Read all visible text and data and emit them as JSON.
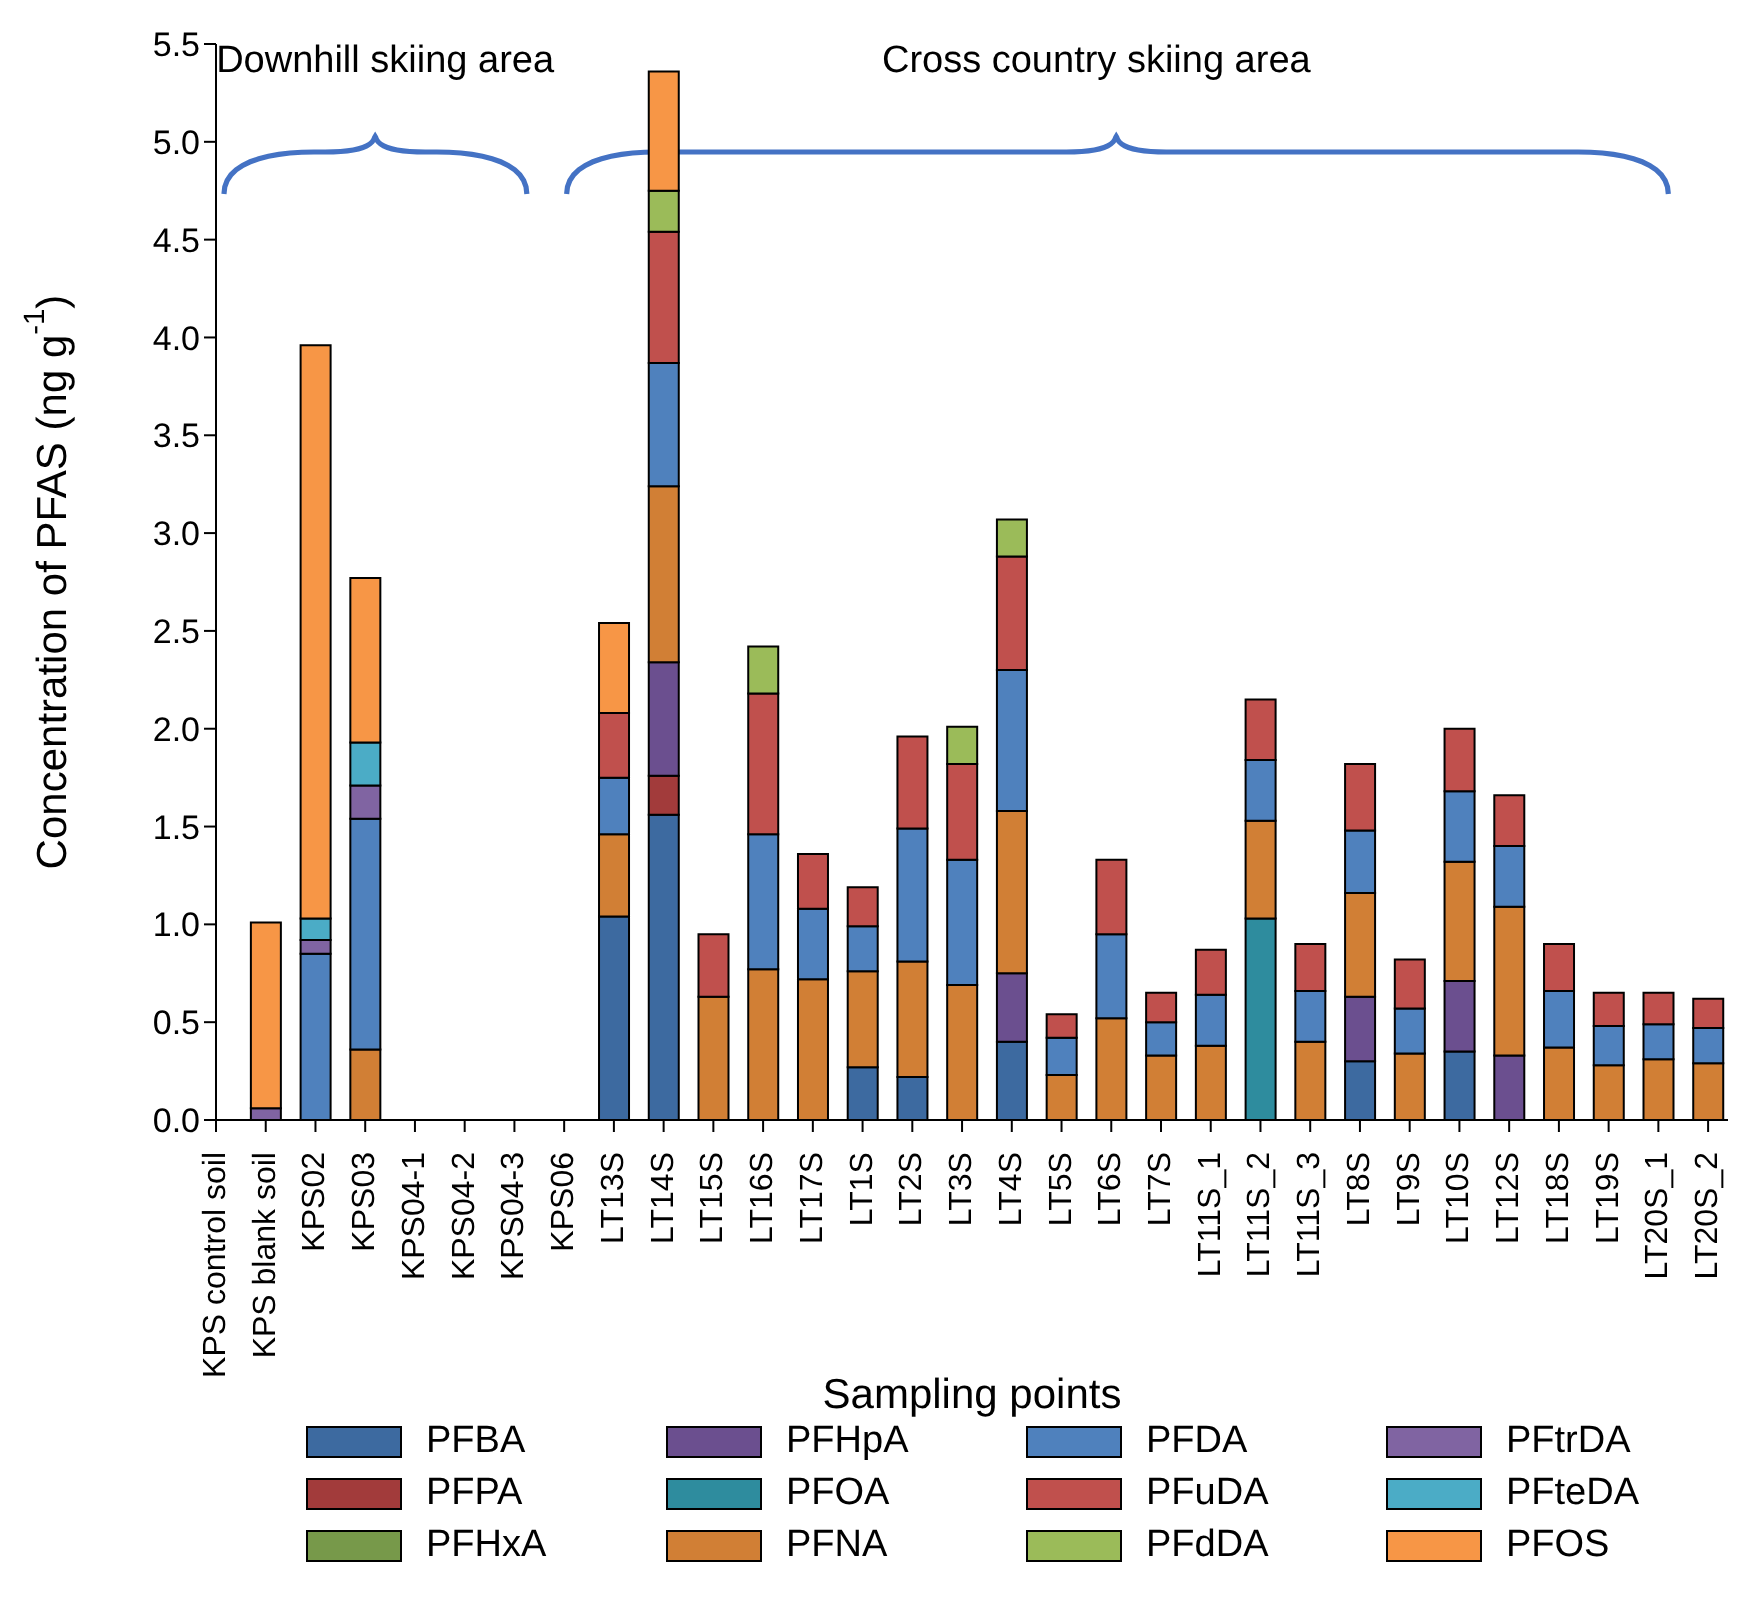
{
  "chart_data": {
    "type": "bar",
    "stacked": true,
    "xlabel": "Sampling points",
    "ylabel": "Concentration of PFAS (ng g$^{-1}$)",
    "annotations": [
      "Downhill skiing area",
      "Cross country skiing area"
    ],
    "categories": [
      "KPS control soil",
      "KPS blank soil",
      "KPS02",
      "KPS03",
      "KPS04-1",
      "KPS04-2",
      "KPS04-3",
      "KPS06",
      "LT13S",
      "LT14S",
      "LT15S",
      "LT16S",
      "LT17S",
      "LT1S",
      "LT2S",
      "LT3S",
      "LT4S",
      "LT5S",
      "LT6S",
      "LT7S",
      "LT11S_1",
      "LT11S_2",
      "LT11S_3",
      "LT8S",
      "LT9S",
      "LT10S",
      "LT12S",
      "LT18S",
      "LT19S",
      "LT20S_1",
      "LT20S_2"
    ],
    "ylim": [
      0,
      5.5
    ],
    "yticks": [
      {
        "value": 0,
        "label": "0.0"
      },
      {
        "value": 0.5,
        "label": "0.5"
      },
      {
        "value": 1,
        "label": "1.0"
      },
      {
        "value": 1.5,
        "label": "1.5"
      },
      {
        "value": 2,
        "label": "2.0"
      },
      {
        "value": 2.5,
        "label": "2.5"
      },
      {
        "value": 3,
        "label": "3.0"
      },
      {
        "value": 3.5,
        "label": "3.5"
      },
      {
        "value": 4,
        "label": "4.0"
      },
      {
        "value": 4.5,
        "label": "4.5"
      },
      {
        "value": 5,
        "label": "5.0"
      },
      {
        "value": 5.5,
        "label": "5.5"
      }
    ],
    "grid": false,
    "legend": "bottom",
    "series": [
      {
        "name": "PFBA",
        "color": "#3d6aa0",
        "values": [
          null,
          null,
          null,
          null,
          null,
          null,
          null,
          null,
          1.04,
          1.56,
          null,
          null,
          null,
          0.27,
          0.22,
          null,
          0.4,
          null,
          null,
          null,
          null,
          null,
          null,
          0.3,
          null,
          0.35,
          null,
          null,
          null,
          null,
          null
        ]
      },
      {
        "name": "PFPA",
        "color": "#a23b3b",
        "values": [
          null,
          null,
          null,
          null,
          null,
          null,
          null,
          null,
          null,
          0.2,
          null,
          null,
          null,
          null,
          null,
          null,
          null,
          null,
          null,
          null,
          null,
          null,
          null,
          null,
          null,
          null,
          null,
          null,
          null,
          null,
          null
        ]
      },
      {
        "name": "PFHxA",
        "color": "#77994a",
        "values": [
          null,
          null,
          null,
          null,
          null,
          null,
          null,
          null,
          null,
          null,
          null,
          null,
          null,
          null,
          null,
          null,
          null,
          null,
          null,
          null,
          null,
          null,
          null,
          null,
          null,
          null,
          null,
          null,
          null,
          null,
          null
        ]
      },
      {
        "name": "PFHpA",
        "color": "#6b4f8f",
        "values": [
          null,
          null,
          null,
          null,
          null,
          null,
          null,
          null,
          null,
          0.58,
          null,
          null,
          null,
          null,
          null,
          null,
          0.35,
          null,
          null,
          null,
          null,
          null,
          null,
          0.33,
          null,
          0.36,
          0.33,
          null,
          null,
          null,
          null
        ]
      },
      {
        "name": "PFOA",
        "color": "#2e8c9e",
        "values": [
          null,
          null,
          null,
          null,
          null,
          null,
          null,
          null,
          null,
          null,
          null,
          null,
          null,
          null,
          null,
          null,
          null,
          null,
          null,
          null,
          null,
          1.03,
          null,
          null,
          null,
          null,
          null,
          null,
          null,
          null,
          null
        ]
      },
      {
        "name": "PFNA",
        "color": "#d17f35",
        "values": [
          null,
          null,
          null,
          0.36,
          null,
          null,
          null,
          null,
          0.42,
          0.9,
          0.63,
          0.77,
          0.72,
          0.49,
          0.59,
          0.69,
          0.83,
          0.23,
          0.52,
          0.33,
          0.38,
          0.5,
          0.4,
          0.53,
          0.34,
          0.61,
          0.76,
          0.37,
          0.28,
          0.31,
          0.29
        ]
      },
      {
        "name": "PFDA",
        "color": "#4f81bd",
        "values": [
          null,
          null,
          0.85,
          1.18,
          null,
          null,
          null,
          null,
          0.29,
          0.63,
          null,
          0.69,
          0.36,
          0.23,
          0.68,
          0.64,
          0.72,
          0.19,
          0.43,
          0.17,
          0.26,
          0.31,
          0.26,
          0.32,
          0.23,
          0.36,
          0.31,
          0.29,
          0.2,
          0.18,
          0.18
        ]
      },
      {
        "name": "PFuDA",
        "color": "#c0504d",
        "values": [
          null,
          null,
          null,
          null,
          null,
          null,
          null,
          null,
          0.33,
          0.67,
          0.32,
          0.72,
          0.28,
          0.2,
          0.47,
          0.49,
          0.58,
          0.12,
          0.38,
          0.15,
          0.23,
          0.31,
          0.24,
          0.34,
          0.25,
          0.32,
          0.26,
          0.24,
          0.17,
          0.16,
          0.15
        ]
      },
      {
        "name": "PFdDA",
        "color": "#9bbb59",
        "values": [
          null,
          null,
          null,
          null,
          null,
          null,
          null,
          null,
          null,
          0.21,
          null,
          0.24,
          null,
          null,
          null,
          0.19,
          0.19,
          null,
          null,
          null,
          null,
          null,
          null,
          null,
          null,
          null,
          null,
          null,
          null,
          null,
          null
        ]
      },
      {
        "name": "PFtrDA",
        "color": "#8064a2",
        "values": [
          null,
          0.06,
          0.07,
          0.17,
          null,
          null,
          null,
          null,
          null,
          null,
          null,
          null,
          null,
          null,
          null,
          null,
          null,
          null,
          null,
          null,
          null,
          null,
          null,
          null,
          null,
          null,
          null,
          null,
          null,
          null,
          null
        ]
      },
      {
        "name": "PFteDA",
        "color": "#4bacc6",
        "values": [
          null,
          null,
          0.11,
          0.22,
          null,
          null,
          null,
          null,
          null,
          null,
          null,
          null,
          null,
          null,
          null,
          null,
          null,
          null,
          null,
          null,
          null,
          null,
          null,
          null,
          null,
          null,
          null,
          null,
          null,
          null,
          null
        ]
      },
      {
        "name": "PFOS",
        "color": "#f79646",
        "values": [
          null,
          0.95,
          2.93,
          0.84,
          null,
          null,
          null,
          null,
          0.46,
          0.61,
          null,
          null,
          null,
          null,
          null,
          null,
          null,
          null,
          null,
          null,
          null,
          null,
          null,
          null,
          null,
          null,
          null,
          null,
          null,
          null,
          null
        ]
      }
    ]
  }
}
